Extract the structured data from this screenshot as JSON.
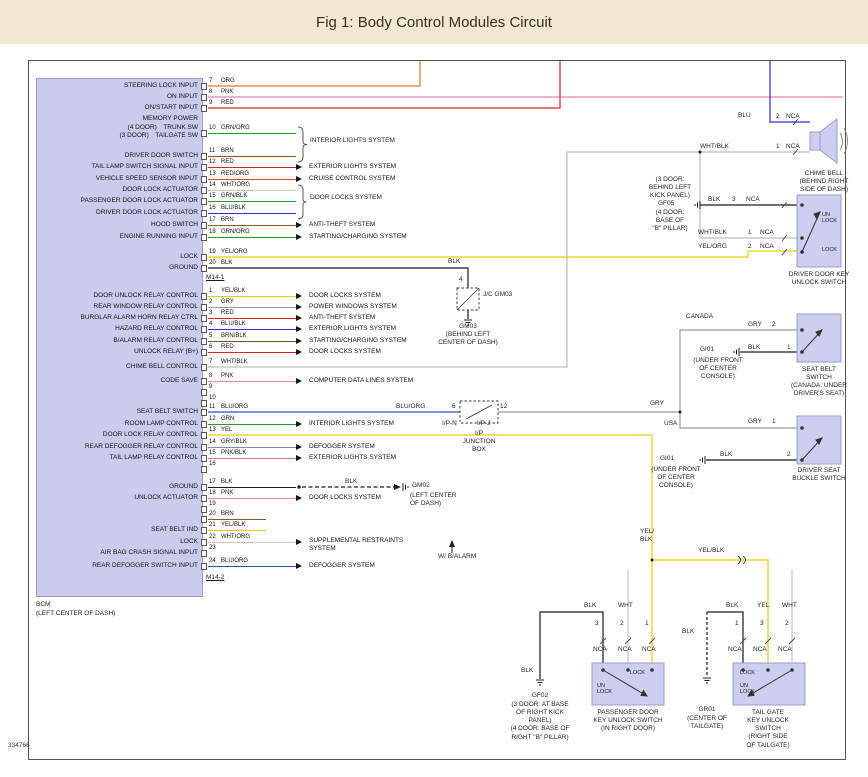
{
  "title": "Fig 1: Body Control Modules Circuit",
  "diagram_number": "334766",
  "wire_colors": {
    "ORG": "#E07F1C",
    "PNK": "#EF7FB3",
    "RED": "#D22A22",
    "GRN/ORG": "#1F9E2C",
    "BRN": "#8A5A2B",
    "RED/ORG": "#D84A18",
    "WHT/ORG": "#CDC4B4",
    "GRN/BLK": "#1F9E2C",
    "BLU/BLK": "#2B35C9",
    "YEL/ORG": "#E3CF06",
    "BLK": "#1C1C1C",
    "YEL/BLK": "#E3CF06",
    "GRY": "#9A9A9A",
    "BRN/BLK": "#7A4E22",
    "WHT/BLK": "#BDBDB6",
    "BLU/ORG": "#2B50C9",
    "GRN": "#1F9E2C",
    "YEL": "#E3CF06",
    "GRY/BLK": "#8C8C8C",
    "PNK/BLK": "#E06FA8",
    "BLU": "#2B35C9",
    "WHT": "#C6C6C0"
  },
  "bcm": {
    "name": "BCM",
    "location": "(LEFT CENTER OF DASH)",
    "connectors": [
      {
        "id": "M14-1",
        "rows": [
          {
            "label": "STEERING LOCK INPUT",
            "pin": "7",
            "wire": "ORG",
            "reach": "long",
            "system": ""
          },
          {
            "label": "ON INPUT",
            "pin": "8",
            "wire": "PNK",
            "reach": "long",
            "system": ""
          },
          {
            "label": "ON/START INPUT",
            "pin": "9",
            "wire": "RED",
            "reach": "long",
            "system": ""
          },
          {
            "label": "MEMORY POWER",
            "pin": "",
            "wire": "",
            "reach": "none",
            "system": ""
          },
          {
            "label": "(4 DOOR)  TRUNK SW\n(3 DOOR)  TAILGATE SW",
            "pin": "10",
            "wire": "GRN/ORG",
            "reach": "short",
            "system": ""
          },
          {
            "label": "DRIVER DOOR SWITCH",
            "pin": "11",
            "wire": "BRN",
            "reach": "short",
            "system": ""
          },
          {
            "label": "TAIL LAMP SWITCH SIGNAL INPUT",
            "pin": "12",
            "wire": "RED",
            "reach": "short",
            "system": "EXTERIOR LIGHTS SYSTEM"
          },
          {
            "label": "VEHICLE SPEED SENSOR INPUT",
            "pin": "13",
            "wire": "RED/ORG",
            "reach": "short",
            "system": "CRUISE CONTROL SYSTEM"
          },
          {
            "label": "DOOR LOCK ACTUATOR",
            "pin": "14",
            "wire": "WHT/ORG",
            "reach": "short",
            "system": ""
          },
          {
            "label": "PASSENGER DOOR LOCK ACTUATOR",
            "pin": "15",
            "wire": "GRN/BLK",
            "reach": "short",
            "system": ""
          },
          {
            "label": "DRIVER DOOR LOCK ACTUATOR",
            "pin": "16",
            "wire": "BLU/BLK",
            "reach": "short",
            "system": ""
          },
          {
            "label": "HOOD SWITCH",
            "pin": "17",
            "wire": "BRN",
            "reach": "short",
            "system": "ANTI-THEFT SYSTEM"
          },
          {
            "label": "ENGINE RUNNING INPUT",
            "pin": "18",
            "wire": "GRN/ORG",
            "reach": "short",
            "system": "STARTING/CHARGING SYSTEM"
          },
          {
            "label": "LOCK",
            "pin": "19",
            "wire": "YEL/ORG",
            "reach": "long",
            "system": ""
          },
          {
            "label": "GROUND",
            "pin": "20",
            "wire": "BLK",
            "reach": "long",
            "system": ""
          }
        ]
      },
      {
        "id": "M14-2",
        "rows": [
          {
            "label": "DOOR UNLOCK RELAY CONTROL",
            "pin": "1",
            "wire": "YEL/BLK",
            "reach": "short",
            "system": "DOOR LOCKS SYSTEM"
          },
          {
            "label": "REAR WINDOW RELAY CONTROL",
            "pin": "2",
            "wire": "GRY",
            "reach": "short",
            "system": "POWER WINDOWS SYSTEM"
          },
          {
            "label": "BURGLAR ALARM HORN RELAY CTRL",
            "pin": "3",
            "wire": "RED",
            "reach": "short",
            "system": "ANTI-THEFT SYSTEM"
          },
          {
            "label": "HAZARD RELAY CONTROL",
            "pin": "4",
            "wire": "BLU/BLK",
            "reach": "short",
            "system": "EXTERIOR LIGHTS SYSTEM"
          },
          {
            "label": "B/ALARM RELAY CONTROL",
            "pin": "5",
            "wire": "BRN/BLK",
            "reach": "short",
            "system": "STARTING/CHARGING SYSTEM"
          },
          {
            "label": "UNLOCK RELAY (B+)",
            "pin": "6",
            "wire": "RED",
            "reach": "short",
            "system": "DOOR LOCKS SYSTEM"
          },
          {
            "label": "CHIME BELL CONTROL",
            "pin": "7",
            "wire": "WHT/BLK",
            "reach": "long",
            "system": ""
          },
          {
            "label": "CODE SAVE",
            "pin": "8",
            "wire": "PNK",
            "reach": "short",
            "system": "COMPUTER DATA LINES SYSTEM"
          },
          {
            "label": "",
            "pin": "9",
            "wire": "",
            "reach": "none",
            "system": ""
          },
          {
            "label": "",
            "pin": "10",
            "wire": "",
            "reach": "none",
            "system": ""
          },
          {
            "label": "SEAT BELT SWITCH",
            "pin": "11",
            "wire": "BLU/ORG",
            "reach": "long",
            "system": ""
          },
          {
            "label": "ROOM LAMP CONTROL",
            "pin": "12",
            "wire": "GRN",
            "reach": "short",
            "system": "INTERIOR LIGHTS SYSTEM"
          },
          {
            "label": "DOOR LOCK RELAY CONTROL",
            "pin": "13",
            "wire": "YEL",
            "reach": "long",
            "system": ""
          },
          {
            "label": "REAR DEFOGGER RELAY CONTROL",
            "pin": "14",
            "wire": "GRY/BLK",
            "reach": "short",
            "system": "DEFOGGER SYSTEM"
          },
          {
            "label": "TAIL LAMP RELAY CONTROL",
            "pin": "15",
            "wire": "PNK/BLK",
            "reach": "short",
            "system": "EXTERIOR LIGHTS SYSTEM"
          },
          {
            "label": "",
            "pin": "16",
            "wire": "",
            "reach": "none",
            "system": ""
          },
          {
            "label": "GROUND",
            "pin": "17",
            "wire": "BLK",
            "reach": "gm02",
            "system": ""
          },
          {
            "label": "UNLOCK ACTUATOR",
            "pin": "18",
            "wire": "PNK",
            "reach": "short",
            "system": "DOOR LOCKS SYSTEM"
          },
          {
            "label": "",
            "pin": "19",
            "wire": "",
            "reach": "none",
            "system": ""
          },
          {
            "label": "",
            "pin": "20",
            "wire": "BRN",
            "reach": "stub",
            "system": ""
          },
          {
            "label": "SEAT BELT IND",
            "pin": "21",
            "wire": "YEL/BLK",
            "reach": "stub",
            "system": ""
          },
          {
            "label": "LOCK",
            "pin": "22",
            "wire": "WHT/ORG",
            "reach": "short",
            "system": "SUPPLEMENTAL RESTRAINTS\nSYSTEM"
          },
          {
            "label": "AIR BAG CRASH SIGNAL INPUT",
            "pin": "23",
            "wire": "",
            "reach": "none",
            "system": ""
          },
          {
            "label": "REAR DEFOGGER SWITCH INPUT",
            "pin": "24",
            "wire": "BLU/ORG",
            "reach": "short",
            "system": "DEFOGGER SYSTEM"
          }
        ]
      }
    ]
  },
  "brace_systems": {
    "interior_lights": "INTERIOR LIGHTS SYSTEM",
    "door_locks": "DOOR LOCKS SYSTEM"
  },
  "components": {
    "chime": {
      "wire_top": "BLU",
      "pin_top": "2",
      "wire_bottom": "WHT/BLK",
      "pin_bottom": "1",
      "nca": "NCA",
      "label": "CHIME BELL\n(BEHIND RIGHT\nSIDE OF DASH)"
    },
    "gf05": {
      "note_top": "(3 DOOR:\nBEHIND LEFT\nKICK PANEL)",
      "id": "GF05",
      "note_bottom": "(4 DOOR:\nBASE OF\n\"B\" PILLAR)",
      "wire": "BLK",
      "pin": "3",
      "nca": "NCA"
    },
    "driver_door_switch": {
      "wire_top": "WHT/BLK",
      "pin_top": "1",
      "wire_bottom": "YEL/ORG",
      "pin_bottom": "2",
      "nca": "NCA",
      "pos_un": "UN\nLOCK",
      "pos_lock": "LOCK",
      "label": "DRIVER DOOR KEY\nUNLOCK SWITCH"
    },
    "gm03": {
      "wire": "BLK",
      "pin": "4",
      "jc": "J/C GM03",
      "label": "GM03\n(BEHIND LEFT\nCENTER OF DASH)"
    },
    "ip_junction": {
      "wire_in": "BLU/ORG",
      "pin_in": "6",
      "pin_out": "12",
      "conn_in": "I/P-N",
      "conn_out": "I/P-J",
      "wire_out": "GRY",
      "label": "I/P\nJUNCTION\nBOX"
    },
    "gm02": {
      "wire": "BLK",
      "id": "GM02",
      "label": "(LEFT CENTER\nOF DASH)"
    },
    "seat_belt_switch": {
      "region": "CANADA",
      "wire_top": "GRY",
      "pin_top": "2",
      "wire_bottom": "BLK",
      "pin_bottom": "1",
      "ground_id": "GI01",
      "ground_loc": "(UNDER FRONT\nOF CENTER\nCONSOLE)",
      "label": "SEAT BELT\nSWITCH\n(CANADA: UNDER\nDRIVER'S SEAT)"
    },
    "buckle_switch": {
      "region": "USA",
      "wire_top": "GRY",
      "pin_top": "1",
      "wire_bottom": "BLK",
      "pin_bottom": "2",
      "ground_id": "GI01",
      "ground_loc": "(UNDER FRONT\nOF CENTER\nCONSOLE)",
      "label": "DRIVER SEAT\nBUCKLE SWITCH"
    },
    "passenger_switch": {
      "wire1": "BLK",
      "wire2": "WHT",
      "pin1": "3",
      "pin2": "2",
      "pin3": "1",
      "nca": "NCA",
      "pos_un": "UN\nLOCK",
      "pos_lock": "LOCK",
      "label": "PASSENGER DOOR\nKEY UNLOCK SWITCH\n(IN RIGHT DOOR)",
      "ground_wire": "BLK",
      "ground_id": "GF02",
      "ground_loc": "(3 DOOR: AT BASE\nOF RIGHT KICK\nPANEL)\n(4 DOOR: BASE OF\nRIGHT \"B\" PILLAR)"
    },
    "tailgate_switch": {
      "wire1": "BLK",
      "wire2": "YEL",
      "wire3": "WHT",
      "pin1": "1",
      "pin2": "3",
      "pin3": "2",
      "nca": "NCA",
      "pos_lock": "LOCK",
      "pos_un": "UN\nLOCK",
      "label": "TAIL GATE\nKEY UNLOCK\nSWITCH\n(RIGHT SIDE\nOF TAILGATE)",
      "ground_wire": "BLK",
      "ground_id": "GR01",
      "ground_loc": "(CENTER OF\nTAILGATE)"
    }
  },
  "annotations": {
    "blu_org_mid": "BLU/ORG",
    "gry_mid": "GRY",
    "w_balarm": "W/ B/ALARM",
    "yel_blk_stack": "YEL/\nBLK",
    "yel_blk_inline": "YEL/BLK",
    "gm02_blk_mid": "BLK"
  }
}
